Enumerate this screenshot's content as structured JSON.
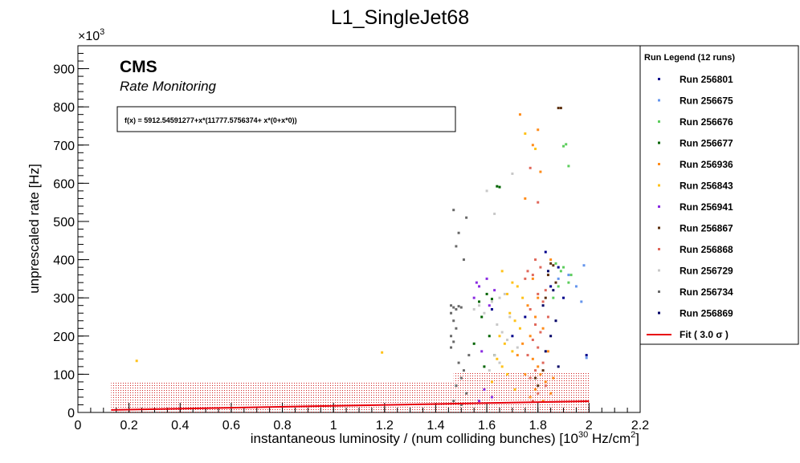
{
  "chart_data": {
    "type": "scatter",
    "title": "L1_SingleJet68",
    "xlabel": "instantaneous luminosity / (num colliding bunches) [10",
    "xlabel_exp": "30",
    "xlabel_units": " Hz/cm",
    "xlabel_units_exp": "2",
    "xlabel_close": "]",
    "ylabel": "unprescaled rate [Hz]",
    "y_multiplier": "×10",
    "y_multiplier_exp": "3",
    "xlim": [
      0,
      2.2
    ],
    "ylim": [
      0,
      960
    ],
    "x_ticks": [
      "0",
      "0.2",
      "0.4",
      "0.6",
      "0.8",
      "1",
      "1.2",
      "1.4",
      "1.6",
      "1.8",
      "2",
      "2.2"
    ],
    "y_ticks": [
      "0",
      "100",
      "200",
      "300",
      "400",
      "500",
      "600",
      "700",
      "800",
      "900"
    ],
    "cms_label": "CMS",
    "cms_sublabel": "Rate Monitoring",
    "fit_formula": "f(x) = 5912.54591277+x*(11777.5756374+ x*(0+x*0))",
    "fit_line": {
      "x": [
        0.13,
        2.0
      ],
      "y": [
        6.6,
        29.5
      ],
      "color": "#e8000b"
    },
    "fit_band": {
      "x": [
        0.13,
        2.0
      ],
      "y": [
        0,
        80
      ],
      "y_high_right": 103
    },
    "legend": {
      "title": "Run Legend (12 runs)",
      "entries": [
        {
          "label": "Run 256801",
          "color": "#00008b"
        },
        {
          "label": "Run 256675",
          "color": "#6495ed"
        },
        {
          "label": "Run 256676",
          "color": "#5ccd5c"
        },
        {
          "label": "Run 256677",
          "color": "#006400"
        },
        {
          "label": "Run 256936",
          "color": "#ff8c1a"
        },
        {
          "label": "Run 256843",
          "color": "#ffc21a"
        },
        {
          "label": "Run 256941",
          "color": "#8a2be2"
        },
        {
          "label": "Run 256867",
          "color": "#5a2d0c"
        },
        {
          "label": "Run 256868",
          "color": "#e0675a"
        },
        {
          "label": "Run 256729",
          "color": "#c8c8c8"
        },
        {
          "label": "Run 256734",
          "color": "#696969"
        },
        {
          "label": "Run 256869",
          "color": "#000066"
        }
      ],
      "fit_label": "Fit ( 3.0  σ )"
    },
    "series": [
      {
        "name": "Run 256801",
        "color": "#00008b",
        "points": [
          [
            1.88,
            380
          ],
          [
            1.85,
            330
          ],
          [
            1.62,
            270
          ],
          [
            1.9,
            300
          ],
          [
            1.75,
            250
          ],
          [
            1.99,
            150
          ],
          [
            1.83,
            420
          ],
          [
            1.7,
            200
          ]
        ]
      },
      {
        "name": "Run 256675",
        "color": "#6495ed",
        "points": [
          [
            1.98,
            385
          ],
          [
            1.97,
            290
          ],
          [
            1.99,
            143
          ],
          [
            1.92,
            360
          ],
          [
            1.88,
            350
          ],
          [
            1.95,
            330
          ]
        ]
      },
      {
        "name": "Run 256676",
        "color": "#5ccd5c",
        "points": [
          [
            1.91,
            702
          ],
          [
            1.9,
            697
          ],
          [
            1.92,
            645
          ],
          [
            1.89,
            370
          ],
          [
            1.93,
            360
          ],
          [
            1.88,
            330
          ],
          [
            1.9,
            380
          ],
          [
            1.86,
            300
          ],
          [
            1.92,
            340
          ],
          [
            1.87,
            390
          ]
        ]
      },
      {
        "name": "Run 256677",
        "color": "#006400",
        "points": [
          [
            1.64,
            592
          ],
          [
            1.65,
            590
          ],
          [
            1.62,
            297
          ],
          [
            1.57,
            290
          ],
          [
            1.6,
            310
          ],
          [
            1.58,
            250
          ],
          [
            1.61,
            200
          ],
          [
            1.55,
            180
          ],
          [
            1.63,
            150
          ],
          [
            1.59,
            120
          ]
        ]
      },
      {
        "name": "Run 256936",
        "color": "#ff8c1a",
        "points": [
          [
            1.73,
            780
          ],
          [
            1.8,
            740
          ],
          [
            1.78,
            700
          ],
          [
            1.81,
            630
          ],
          [
            1.75,
            560
          ],
          [
            1.85,
            400
          ],
          [
            1.78,
            350
          ],
          [
            1.8,
            300
          ],
          [
            1.76,
            280
          ],
          [
            1.79,
            250
          ],
          [
            1.82,
            220
          ],
          [
            1.77,
            200
          ],
          [
            1.74,
            180
          ],
          [
            1.84,
            160
          ],
          [
            1.78,
            140
          ],
          [
            1.8,
            120
          ],
          [
            1.81,
            100
          ],
          [
            1.83,
            80
          ],
          [
            1.79,
            60
          ],
          [
            1.85,
            50
          ],
          [
            1.77,
            40
          ],
          [
            1.82,
            30
          ],
          [
            1.75,
            100
          ],
          [
            1.72,
            150
          ],
          [
            1.86,
            90
          ]
        ]
      },
      {
        "name": "Run 256843",
        "color": "#ffc21a",
        "points": [
          [
            0.23,
            135
          ],
          [
            1.19,
            157
          ],
          [
            1.75,
            730
          ],
          [
            1.79,
            690
          ],
          [
            1.66,
            370
          ],
          [
            1.7,
            340
          ],
          [
            1.72,
            330
          ],
          [
            1.68,
            310
          ],
          [
            1.74,
            300
          ],
          [
            1.69,
            260
          ],
          [
            1.71,
            240
          ],
          [
            1.73,
            220
          ],
          [
            1.65,
            200
          ],
          [
            1.67,
            180
          ],
          [
            1.7,
            160
          ],
          [
            1.64,
            140
          ],
          [
            1.66,
            120
          ],
          [
            1.68,
            100
          ],
          [
            1.62,
            80
          ],
          [
            1.71,
            60
          ]
        ]
      },
      {
        "name": "Run 256941",
        "color": "#8a2be2",
        "points": [
          [
            1.56,
            340
          ],
          [
            1.57,
            330
          ],
          [
            1.6,
            350
          ],
          [
            1.63,
            320
          ],
          [
            1.55,
            300
          ],
          [
            1.61,
            280
          ],
          [
            1.58,
            160
          ],
          [
            1.59,
            60
          ],
          [
            1.62,
            40
          ],
          [
            1.57,
            30
          ]
        ]
      },
      {
        "name": "Run 256867",
        "color": "#5a2d0c",
        "points": [
          [
            1.88,
            797
          ],
          [
            1.89,
            797
          ],
          [
            1.85,
            390
          ],
          [
            1.86,
            385
          ],
          [
            1.84,
            360
          ],
          [
            1.87,
            340
          ],
          [
            1.83,
            300
          ],
          [
            1.82,
            110
          ],
          [
            1.79,
            90
          ],
          [
            1.8,
            70
          ]
        ]
      },
      {
        "name": "Run 256868",
        "color": "#e0675a",
        "points": [
          [
            1.8,
            550
          ],
          [
            1.77,
            640
          ],
          [
            1.79,
            400
          ],
          [
            1.81,
            380
          ],
          [
            1.76,
            370
          ],
          [
            1.78,
            360
          ],
          [
            1.75,
            350
          ],
          [
            1.83,
            320
          ],
          [
            1.8,
            310
          ],
          [
            1.82,
            290
          ],
          [
            1.77,
            270
          ],
          [
            1.84,
            250
          ],
          [
            1.79,
            230
          ],
          [
            1.81,
            210
          ],
          [
            1.78,
            190
          ],
          [
            1.8,
            170
          ],
          [
            1.76,
            150
          ],
          [
            1.82,
            130
          ],
          [
            1.79,
            110
          ],
          [
            1.77,
            90
          ],
          [
            1.83,
            70
          ],
          [
            1.8,
            50
          ],
          [
            1.78,
            30
          ]
        ]
      },
      {
        "name": "Run 256729",
        "color": "#c8c8c8",
        "points": [
          [
            1.7,
            625
          ],
          [
            1.6,
            580
          ],
          [
            1.63,
            520
          ],
          [
            1.57,
            280
          ],
          [
            1.55,
            270
          ],
          [
            1.59,
            260
          ],
          [
            1.62,
            290
          ],
          [
            1.65,
            300
          ],
          [
            1.67,
            310
          ],
          [
            1.69,
            250
          ],
          [
            1.64,
            230
          ],
          [
            1.66,
            210
          ],
          [
            1.68,
            190
          ],
          [
            1.72,
            170
          ],
          [
            1.63,
            150
          ],
          [
            1.65,
            130
          ],
          [
            1.61,
            110
          ]
        ]
      },
      {
        "name": "Run 256734",
        "color": "#696969",
        "points": [
          [
            1.47,
            530
          ],
          [
            1.52,
            510
          ],
          [
            1.49,
            470
          ],
          [
            1.48,
            435
          ],
          [
            1.51,
            400
          ],
          [
            1.46,
            280
          ],
          [
            1.47,
            275
          ],
          [
            1.48,
            270
          ],
          [
            1.49,
            278
          ],
          [
            1.5,
            275
          ],
          [
            1.46,
            260
          ],
          [
            1.47,
            240
          ],
          [
            1.48,
            220
          ],
          [
            1.46,
            200
          ],
          [
            1.47,
            185
          ],
          [
            1.46,
            170
          ],
          [
            1.53,
            150
          ],
          [
            1.49,
            130
          ],
          [
            1.51,
            110
          ],
          [
            1.5,
            90
          ],
          [
            1.48,
            70
          ],
          [
            1.52,
            50
          ],
          [
            1.47,
            30
          ],
          [
            1.5,
            20
          ]
        ]
      },
      {
        "name": "Run 256869",
        "color": "#000066",
        "points": [
          [
            1.84,
            370
          ],
          [
            1.86,
            320
          ],
          [
            1.82,
            280
          ],
          [
            1.87,
            240
          ],
          [
            1.85,
            200
          ],
          [
            1.83,
            160
          ],
          [
            1.88,
            120
          ]
        ]
      }
    ]
  }
}
